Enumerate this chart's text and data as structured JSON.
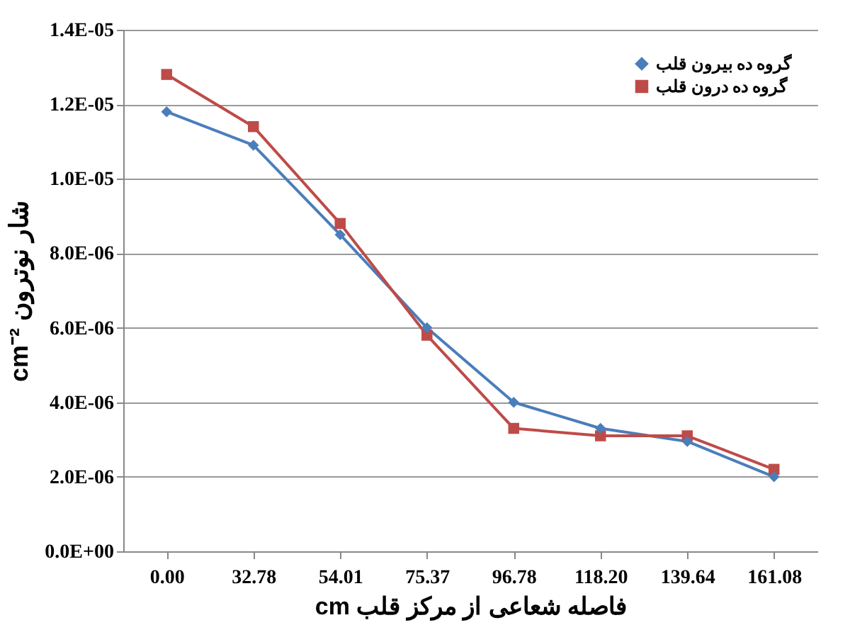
{
  "chart_data": {
    "type": "line",
    "xlabel": "cm فاصله شعاعی از مرکز قلب",
    "ylabel": "cm⁻² شار نوترون",
    "categories": [
      "0.00",
      "32.78",
      "54.01",
      "75.37",
      "96.78",
      "118.20",
      "139.64",
      "161.08"
    ],
    "series": [
      {
        "name": "گروه ده بیرون قلب",
        "color": "#4a7ebb",
        "marker": "diamond",
        "values": [
          1.18e-05,
          1.09e-05,
          8.5e-06,
          6e-06,
          4e-06,
          3.3e-06,
          2.95e-06,
          2e-06
        ]
      },
      {
        "name": "گروه ده درون قلب",
        "color": "#be4b48",
        "marker": "square",
        "values": [
          1.28e-05,
          1.14e-05,
          8.8e-06,
          5.8e-06,
          3.3e-06,
          3.1e-06,
          3.1e-06,
          2.2e-06
        ]
      }
    ],
    "ylim": [
      0,
      1.4e-05
    ],
    "yticks": [
      {
        "value": 0,
        "label": "0.0E+00"
      },
      {
        "value": 2e-06,
        "label": "2.0E-06"
      },
      {
        "value": 4e-06,
        "label": "4.0E-06"
      },
      {
        "value": 6e-06,
        "label": "6.0E-06"
      },
      {
        "value": 8e-06,
        "label": "8.0E-06"
      },
      {
        "value": 1e-05,
        "label": "1.0E-05"
      },
      {
        "value": 1.2e-05,
        "label": "1.2E-05"
      },
      {
        "value": 1.4e-05,
        "label": "1.4E-05"
      }
    ],
    "grid": "y",
    "legend": "top right",
    "line_style": "solid"
  }
}
